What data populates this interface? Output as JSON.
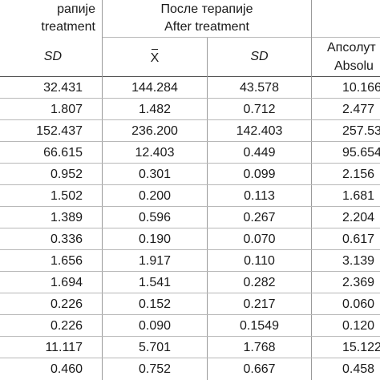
{
  "header": {
    "before_sr_fragment": "рапије",
    "before_en_fragment": "treatment",
    "after_sr": "После терапије",
    "after_en": "After treatment",
    "sd_label": "SD",
    "mean_label": "X",
    "abs_sr_fragment": "Апсолут",
    "abs_en_fragment": "Absolu"
  },
  "rows": [
    {
      "sd_before": "32.431",
      "mean_after": "144.284",
      "sd_after": "43.578",
      "abs": "10.166"
    },
    {
      "sd_before": "1.807",
      "mean_after": "1.482",
      "sd_after": "0.712",
      "abs": "2.477"
    },
    {
      "sd_before": "152.437",
      "mean_after": "236.200",
      "sd_after": "142.403",
      "abs": "257.53"
    },
    {
      "sd_before": "66.615",
      "mean_after": "12.403",
      "sd_after": "0.449",
      "abs": "95.654"
    },
    {
      "sd_before": "0.952",
      "mean_after": "0.301",
      "sd_after": "0.099",
      "abs": "2.156"
    },
    {
      "sd_before": "1.502",
      "mean_after": "0.200",
      "sd_after": "0.113",
      "abs": "1.681"
    },
    {
      "sd_before": "1.389",
      "mean_after": "0.596",
      "sd_after": "0.267",
      "abs": "2.204"
    },
    {
      "sd_before": "0.336",
      "mean_after": "0.190",
      "sd_after": "0.070",
      "abs": "0.617"
    },
    {
      "sd_before": "1.656",
      "mean_after": "1.917",
      "sd_after": "0.110",
      "abs": "3.139"
    },
    {
      "sd_before": "1.694",
      "mean_after": "1.541",
      "sd_after": "0.282",
      "abs": "2.369"
    },
    {
      "sd_before": "0.226",
      "mean_after": "0.152",
      "sd_after": "0.217",
      "abs": "0.060"
    },
    {
      "sd_before": "0.226",
      "mean_after": "0.090",
      "sd_after": "0.1549",
      "abs": "0.120"
    },
    {
      "sd_before": "11.117",
      "mean_after": "5.701",
      "sd_after": "1.768",
      "abs": "15.122"
    },
    {
      "sd_before": "0.460",
      "mean_after": "0.752",
      "sd_after": "0.667",
      "abs": "0.458"
    }
  ]
}
